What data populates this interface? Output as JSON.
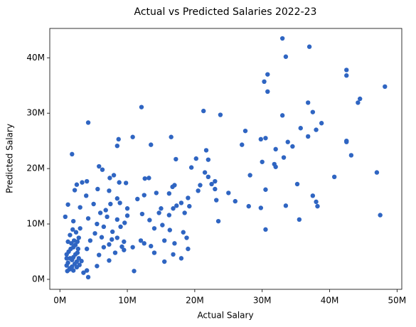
{
  "chart_data": {
    "type": "scatter",
    "title": "Actual vs Predicted Salaries 2022-23",
    "x_label": "Actual Salary",
    "y_label": "Predicted Salary",
    "color": "#2f65c2",
    "grid": false,
    "xlim": [
      -1500000,
      50700000
    ],
    "ylim": [
      -1800000,
      45300000
    ],
    "xticks": [
      {
        "value": 0,
        "label": "0M"
      },
      {
        "value": 10000000,
        "label": "10M"
      },
      {
        "value": 20000000,
        "label": "20M"
      },
      {
        "value": 30000000,
        "label": "30M"
      },
      {
        "value": 40000000,
        "label": "40M"
      },
      {
        "value": 50000000,
        "label": "50M"
      }
    ],
    "yticks": [
      {
        "value": 0,
        "label": "0M"
      },
      {
        "value": 10000000,
        "label": "10M"
      },
      {
        "value": 20000000,
        "label": "20M"
      },
      {
        "value": 30000000,
        "label": "30M"
      },
      {
        "value": 40000000,
        "label": "40M"
      }
    ],
    "x": [
      33000000,
      37000000,
      33500000,
      42500000,
      42500000,
      30800000,
      30300000,
      30800000,
      48200000,
      44500000,
      44200000,
      36800000,
      37500000,
      33000000,
      38800000,
      35700000,
      27500000,
      38000000,
      30500000,
      29800000,
      33800000,
      36800000,
      42500000,
      42500000,
      34500000,
      27000000,
      32000000,
      33200000,
      43200000,
      30000000,
      31800000,
      32000000,
      35200000,
      40700000,
      47000000,
      28200000,
      30500000,
      25000000,
      26000000,
      37500000,
      38000000,
      38200000,
      33500000,
      28000000,
      29800000,
      35500000,
      47500000,
      30500000,
      23500000,
      21300000,
      23800000,
      12100000,
      16500000,
      10800000,
      8700000,
      8500000,
      13500000,
      21700000,
      17200000,
      20200000,
      22000000,
      19500000,
      21500000,
      22000000,
      23000000,
      12600000,
      13200000,
      16700000,
      17000000,
      20800000,
      22500000,
      20500000,
      23000000,
      16200000,
      14300000,
      12500000,
      19000000,
      23200000,
      11500000,
      18000000,
      17300000,
      16800000,
      18500000,
      19200000,
      15000000,
      14700000,
      16200000,
      10000000,
      10000000,
      9600000,
      12200000,
      13300000,
      14000000,
      15200000,
      16300000,
      18300000,
      15500000,
      13500000,
      12500000,
      18800000,
      14000000,
      16800000,
      15500000,
      11000000,
      10800000,
      12000000,
      17000000,
      19000000,
      18000000,
      4200000,
      1800000,
      5800000,
      6300000,
      7400000,
      4000000,
      2500000,
      3300000,
      3900000,
      8000000,
      8800000,
      9800000,
      7300000,
      5600000,
      2200000,
      8500000,
      7500000,
      5000000,
      1200000,
      3000000,
      6000000,
      6800000,
      8900000,
      7000000,
      4200000,
      800000,
      2000000,
      5500000,
      6500000,
      9000000,
      7800000,
      3000000,
      5200000,
      8500000,
      6200000,
      4500000,
      2800000,
      1500000,
      7300000,
      9200000,
      9500000,
      6500000,
      4000000,
      8200000,
      5800000,
      7300000,
      3200000,
      5500000,
      4000000,
      3500000,
      4200000,
      9500000,
      7700000,
      8500000,
      1000000,
      1200000,
      1500000,
      1800000,
      2000000,
      2200000,
      2500000,
      1000000,
      1300000,
      1600000,
      2000000,
      2300000,
      2600000,
      2800000,
      1100000,
      1400000,
      2000000,
      2500000,
      1700000,
      2100000,
      1200000,
      2400000,
      1900000,
      2700000,
      2900000,
      1500000,
      2300000,
      1800000,
      2600000,
      1000000
    ],
    "values": [
      43500000,
      42000000,
      40200000,
      37800000,
      36800000,
      37000000,
      35700000,
      33900000,
      34800000,
      32600000,
      31900000,
      31900000,
      30200000,
      29600000,
      28200000,
      27300000,
      26800000,
      27000000,
      25500000,
      25300000,
      24800000,
      25800000,
      25000000,
      24800000,
      24000000,
      24300000,
      23500000,
      22000000,
      22400000,
      21200000,
      20800000,
      20300000,
      17200000,
      18500000,
      19300000,
      18800000,
      16200000,
      15600000,
      14100000,
      15100000,
      14000000,
      13200000,
      13300000,
      13200000,
      12900000,
      10800000,
      11600000,
      9000000,
      10500000,
      30400000,
      29700000,
      31100000,
      25700000,
      25700000,
      25300000,
      24100000,
      24300000,
      23300000,
      21700000,
      21800000,
      21600000,
      20200000,
      19300000,
      18500000,
      17700000,
      18200000,
      18300000,
      16700000,
      17000000,
      17000000,
      17200000,
      16000000,
      16300000,
      15500000,
      15600000,
      15200000,
      14700000,
      14300000,
      14500000,
      13800000,
      13300000,
      12800000,
      12000000,
      13200000,
      12800000,
      12000000,
      11600000,
      12800000,
      11500000,
      10200000,
      11800000,
      10700000,
      9200000,
      9800000,
      8900000,
      8500000,
      7000000,
      6000000,
      6500000,
      7500000,
      4800000,
      4500000,
      3200000,
      1500000,
      5800000,
      7000000,
      6500000,
      5500000,
      3800000,
      28300000,
      22600000,
      20400000,
      19800000,
      18300000,
      17700000,
      17100000,
      17500000,
      15100000,
      18800000,
      17500000,
      17400000,
      16000000,
      16300000,
      16100000,
      14600000,
      13600000,
      13600000,
      13500000,
      13000000,
      12000000,
      12500000,
      13800000,
      11300000,
      11000000,
      11300000,
      10500000,
      10000000,
      9500000,
      9500000,
      8600000,
      9200000,
      8300000,
      7500000,
      7600000,
      7000000,
      7500000,
      8000000,
      6300000,
      5900000,
      5300000,
      5800000,
      5500000,
      4800000,
      4400000,
      3400000,
      3300000,
      2400000,
      1600000,
      1200000,
      400000,
      6800000,
      7200000,
      10800000,
      2500000,
      3000000,
      2000000,
      3500000,
      4000000,
      2800000,
      3200000,
      4500000,
      5000000,
      5500000,
      5800000,
      6200000,
      4800000,
      3800000,
      1500000,
      1800000,
      1600000,
      2200000,
      6500000,
      7000000,
      6800000,
      8500000,
      9000000,
      5500000,
      2600000,
      3800000,
      4500000,
      2300000,
      6800000,
      3800000
    ]
  }
}
